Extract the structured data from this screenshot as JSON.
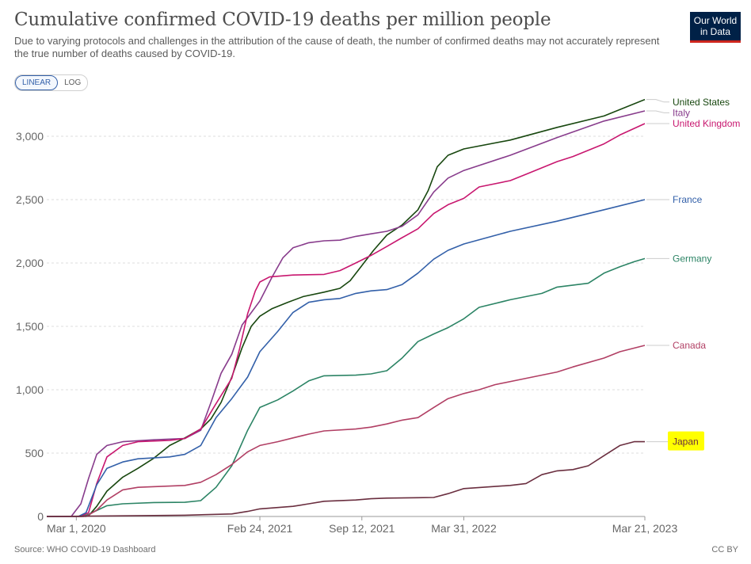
{
  "header": {
    "title": "Cumulative confirmed COVID-19 deaths per million people",
    "subtitle": "Due to varying protocols and challenges in the attribution of the cause of death, the number of confirmed deaths may not accurately represent the true number of deaths caused by COVID-19.",
    "logo_line1": "Our World",
    "logo_line2": "in Data"
  },
  "controls": {
    "linear_label": "LINEAR",
    "log_label": "LOG",
    "selected": "LINEAR"
  },
  "footer": {
    "source": "Source: WHO COVID-19 Dashboard",
    "license": "CC BY"
  },
  "colors": {
    "grid": "#dddddd",
    "axis_text": "#666666",
    "highlight": "#ffff00"
  },
  "chart_data": {
    "type": "line",
    "title": "Cumulative confirmed COVID-19 deaths per million people",
    "xlabel": "",
    "ylabel": "",
    "ylim": [
      0,
      3300
    ],
    "y_ticks": [
      0,
      500,
      1000,
      1500,
      2000,
      2500,
      3000
    ],
    "y_tick_labels": [
      "0",
      "500",
      "1,000",
      "1,500",
      "2,000",
      "2,500",
      "3,000"
    ],
    "x_tick_labels": [
      "Mar 1, 2020",
      "Feb 24, 2021",
      "Sep 12, 2021",
      "Mar 31, 2022",
      "Mar 21, 2023"
    ],
    "x_tick_dates": [
      "2020-03-01",
      "2021-02-24",
      "2021-09-12",
      "2022-03-31",
      "2023-03-21"
    ],
    "xlim": [
      "2020-01-03",
      "2023-03-21"
    ],
    "legend": "inline-right",
    "grid": true,
    "series": [
      {
        "name": "United States",
        "color": "#18470f",
        "points": [
          [
            "2020-01-03",
            0
          ],
          [
            "2020-03-10",
            0
          ],
          [
            "2020-03-25",
            5
          ],
          [
            "2020-04-10",
            80
          ],
          [
            "2020-04-30",
            200
          ],
          [
            "2020-05-31",
            310
          ],
          [
            "2020-06-30",
            380
          ],
          [
            "2020-07-31",
            460
          ],
          [
            "2020-08-31",
            560
          ],
          [
            "2020-09-30",
            620
          ],
          [
            "2020-10-31",
            690
          ],
          [
            "2020-11-20",
            770
          ],
          [
            "2020-12-10",
            900
          ],
          [
            "2020-12-31",
            1100
          ],
          [
            "2021-01-20",
            1330
          ],
          [
            "2021-02-07",
            1500
          ],
          [
            "2021-02-24",
            1580
          ],
          [
            "2021-03-20",
            1640
          ],
          [
            "2021-04-20",
            1690
          ],
          [
            "2021-05-20",
            1735
          ],
          [
            "2021-06-30",
            1770
          ],
          [
            "2021-07-31",
            1800
          ],
          [
            "2021-08-20",
            1860
          ],
          [
            "2021-09-12",
            1980
          ],
          [
            "2021-10-05",
            2100
          ],
          [
            "2021-10-31",
            2220
          ],
          [
            "2021-11-30",
            2300
          ],
          [
            "2021-12-31",
            2420
          ],
          [
            "2022-01-20",
            2570
          ],
          [
            "2022-02-07",
            2760
          ],
          [
            "2022-02-28",
            2850
          ],
          [
            "2022-03-31",
            2900
          ],
          [
            "2022-06-30",
            2970
          ],
          [
            "2022-09-30",
            3070
          ],
          [
            "2022-12-31",
            3160
          ],
          [
            "2023-03-21",
            3290
          ]
        ]
      },
      {
        "name": "Italy",
        "color": "#883c8c",
        "points": [
          [
            "2020-01-03",
            0
          ],
          [
            "2020-02-20",
            0
          ],
          [
            "2020-03-10",
            100
          ],
          [
            "2020-03-25",
            300
          ],
          [
            "2020-04-10",
            490
          ],
          [
            "2020-04-30",
            560
          ],
          [
            "2020-05-31",
            590
          ],
          [
            "2020-07-31",
            605
          ],
          [
            "2020-09-30",
            615
          ],
          [
            "2020-10-31",
            680
          ],
          [
            "2020-11-20",
            900
          ],
          [
            "2020-12-10",
            1130
          ],
          [
            "2020-12-31",
            1280
          ],
          [
            "2021-01-20",
            1510
          ],
          [
            "2021-02-24",
            1700
          ],
          [
            "2021-03-20",
            1890
          ],
          [
            "2021-04-10",
            2040
          ],
          [
            "2021-04-30",
            2120
          ],
          [
            "2021-05-31",
            2160
          ],
          [
            "2021-06-30",
            2175
          ],
          [
            "2021-07-31",
            2180
          ],
          [
            "2021-08-31",
            2210
          ],
          [
            "2021-09-30",
            2230
          ],
          [
            "2021-10-31",
            2250
          ],
          [
            "2021-11-30",
            2290
          ],
          [
            "2021-12-31",
            2380
          ],
          [
            "2022-01-31",
            2560
          ],
          [
            "2022-02-28",
            2670
          ],
          [
            "2022-03-31",
            2730
          ],
          [
            "2022-06-30",
            2850
          ],
          [
            "2022-09-30",
            2990
          ],
          [
            "2022-12-31",
            3120
          ],
          [
            "2023-03-21",
            3200
          ]
        ]
      },
      {
        "name": "United Kingdom",
        "color": "#c8176f",
        "points": [
          [
            "2020-01-03",
            0
          ],
          [
            "2020-03-10",
            0
          ],
          [
            "2020-03-25",
            30
          ],
          [
            "2020-04-10",
            260
          ],
          [
            "2020-04-30",
            470
          ],
          [
            "2020-05-31",
            560
          ],
          [
            "2020-06-30",
            590
          ],
          [
            "2020-08-31",
            600
          ],
          [
            "2020-09-30",
            615
          ],
          [
            "2020-10-31",
            690
          ],
          [
            "2020-11-30",
            890
          ],
          [
            "2020-12-31",
            1090
          ],
          [
            "2021-01-15",
            1320
          ],
          [
            "2021-01-31",
            1600
          ],
          [
            "2021-02-15",
            1780
          ],
          [
            "2021-02-24",
            1850
          ],
          [
            "2021-03-15",
            1890
          ],
          [
            "2021-04-30",
            1905
          ],
          [
            "2021-06-30",
            1910
          ],
          [
            "2021-07-31",
            1940
          ],
          [
            "2021-08-31",
            2000
          ],
          [
            "2021-09-30",
            2060
          ],
          [
            "2021-10-31",
            2130
          ],
          [
            "2021-11-30",
            2200
          ],
          [
            "2021-12-31",
            2270
          ],
          [
            "2022-01-31",
            2390
          ],
          [
            "2022-02-28",
            2460
          ],
          [
            "2022-03-31",
            2510
          ],
          [
            "2022-04-30",
            2600
          ],
          [
            "2022-06-30",
            2650
          ],
          [
            "2022-07-31",
            2700
          ],
          [
            "2022-09-30",
            2800
          ],
          [
            "2022-10-31",
            2840
          ],
          [
            "2022-12-31",
            2940
          ],
          [
            "2023-01-31",
            3010
          ],
          [
            "2023-03-21",
            3100
          ]
        ]
      },
      {
        "name": "France",
        "color": "#3360a9",
        "points": [
          [
            "2020-01-03",
            0
          ],
          [
            "2020-03-05",
            0
          ],
          [
            "2020-03-20",
            30
          ],
          [
            "2020-04-10",
            250
          ],
          [
            "2020-04-30",
            380
          ],
          [
            "2020-05-31",
            430
          ],
          [
            "2020-06-30",
            455
          ],
          [
            "2020-08-31",
            470
          ],
          [
            "2020-09-30",
            490
          ],
          [
            "2020-10-31",
            560
          ],
          [
            "2020-11-30",
            780
          ],
          [
            "2020-12-31",
            930
          ],
          [
            "2021-01-31",
            1100
          ],
          [
            "2021-02-24",
            1300
          ],
          [
            "2021-03-31",
            1460
          ],
          [
            "2021-04-30",
            1610
          ],
          [
            "2021-05-31",
            1690
          ],
          [
            "2021-06-30",
            1710
          ],
          [
            "2021-07-31",
            1720
          ],
          [
            "2021-08-31",
            1760
          ],
          [
            "2021-09-30",
            1780
          ],
          [
            "2021-10-31",
            1790
          ],
          [
            "2021-11-30",
            1830
          ],
          [
            "2021-12-31",
            1920
          ],
          [
            "2022-01-31",
            2030
          ],
          [
            "2022-02-28",
            2100
          ],
          [
            "2022-03-31",
            2150
          ],
          [
            "2022-06-30",
            2250
          ],
          [
            "2022-09-30",
            2330
          ],
          [
            "2022-12-31",
            2420
          ],
          [
            "2023-03-21",
            2500
          ]
        ]
      },
      {
        "name": "Germany",
        "color": "#2c8465",
        "points": [
          [
            "2020-01-03",
            0
          ],
          [
            "2020-03-15",
            0
          ],
          [
            "2020-04-01",
            30
          ],
          [
            "2020-04-30",
            85
          ],
          [
            "2020-05-31",
            100
          ],
          [
            "2020-07-31",
            110
          ],
          [
            "2020-09-30",
            112
          ],
          [
            "2020-10-31",
            125
          ],
          [
            "2020-11-30",
            230
          ],
          [
            "2020-12-31",
            400
          ],
          [
            "2021-01-31",
            680
          ],
          [
            "2021-02-24",
            860
          ],
          [
            "2021-03-31",
            920
          ],
          [
            "2021-04-30",
            990
          ],
          [
            "2021-05-31",
            1070
          ],
          [
            "2021-06-30",
            1110
          ],
          [
            "2021-08-31",
            1115
          ],
          [
            "2021-09-30",
            1125
          ],
          [
            "2021-10-31",
            1150
          ],
          [
            "2021-11-30",
            1250
          ],
          [
            "2021-12-31",
            1380
          ],
          [
            "2022-01-31",
            1440
          ],
          [
            "2022-02-28",
            1490
          ],
          [
            "2022-03-31",
            1560
          ],
          [
            "2022-04-30",
            1650
          ],
          [
            "2022-06-30",
            1710
          ],
          [
            "2022-08-31",
            1760
          ],
          [
            "2022-09-30",
            1810
          ],
          [
            "2022-11-30",
            1840
          ],
          [
            "2022-12-31",
            1920
          ],
          [
            "2023-01-31",
            1970
          ],
          [
            "2023-02-28",
            2010
          ],
          [
            "2023-03-21",
            2035
          ]
        ]
      },
      {
        "name": "Canada",
        "color": "#b13f64",
        "points": [
          [
            "2020-01-03",
            0
          ],
          [
            "2020-03-20",
            0
          ],
          [
            "2020-04-10",
            50
          ],
          [
            "2020-04-30",
            130
          ],
          [
            "2020-05-31",
            210
          ],
          [
            "2020-06-30",
            230
          ],
          [
            "2020-09-30",
            245
          ],
          [
            "2020-10-31",
            270
          ],
          [
            "2020-11-30",
            330
          ],
          [
            "2020-12-31",
            410
          ],
          [
            "2021-01-31",
            510
          ],
          [
            "2021-02-24",
            560
          ],
          [
            "2021-03-31",
            590
          ],
          [
            "2021-04-30",
            620
          ],
          [
            "2021-05-31",
            650
          ],
          [
            "2021-06-30",
            675
          ],
          [
            "2021-08-31",
            690
          ],
          [
            "2021-09-30",
            705
          ],
          [
            "2021-10-31",
            730
          ],
          [
            "2021-11-30",
            760
          ],
          [
            "2021-12-31",
            780
          ],
          [
            "2022-01-31",
            860
          ],
          [
            "2022-02-28",
            930
          ],
          [
            "2022-03-31",
            970
          ],
          [
            "2022-04-30",
            1000
          ],
          [
            "2022-05-31",
            1040
          ],
          [
            "2022-07-31",
            1090
          ],
          [
            "2022-09-30",
            1140
          ],
          [
            "2022-10-31",
            1180
          ],
          [
            "2022-12-31",
            1250
          ],
          [
            "2023-01-31",
            1300
          ],
          [
            "2023-03-21",
            1350
          ]
        ]
      },
      {
        "name": "Japan",
        "color": "#6a2e3f",
        "points": [
          [
            "2020-01-03",
            0
          ],
          [
            "2020-05-31",
            5
          ],
          [
            "2020-09-30",
            10
          ],
          [
            "2020-12-31",
            20
          ],
          [
            "2021-01-31",
            40
          ],
          [
            "2021-02-24",
            60
          ],
          [
            "2021-04-30",
            80
          ],
          [
            "2021-05-31",
            100
          ],
          [
            "2021-06-30",
            120
          ],
          [
            "2021-08-31",
            130
          ],
          [
            "2021-09-30",
            140
          ],
          [
            "2021-10-31",
            145
          ],
          [
            "2021-12-31",
            148
          ],
          [
            "2022-01-31",
            150
          ],
          [
            "2022-02-28",
            180
          ],
          [
            "2022-03-31",
            220
          ],
          [
            "2022-06-30",
            245
          ],
          [
            "2022-07-31",
            260
          ],
          [
            "2022-08-31",
            330
          ],
          [
            "2022-09-30",
            360
          ],
          [
            "2022-10-31",
            370
          ],
          [
            "2022-11-30",
            400
          ],
          [
            "2022-12-31",
            480
          ],
          [
            "2023-01-31",
            560
          ],
          [
            "2023-02-28",
            590
          ],
          [
            "2023-03-21",
            590
          ]
        ]
      }
    ],
    "labels": [
      {
        "series": "United States",
        "text": "United States",
        "color": "#18470f",
        "y": 3270
      },
      {
        "series": "Italy",
        "text": "Italy",
        "color": "#883c8c",
        "y": 3185
      },
      {
        "series": "United Kingdom",
        "text": "United Kingdom",
        "color": "#c8176f",
        "y": 3100
      },
      {
        "series": "France",
        "text": "France",
        "color": "#3360a9",
        "y": 2500
      },
      {
        "series": "Germany",
        "text": "Germany",
        "color": "#2c8465",
        "y": 2035
      },
      {
        "series": "Canada",
        "text": "Canada",
        "color": "#b13f64",
        "y": 1350
      },
      {
        "series": "Japan",
        "text": "Japan",
        "color": "#6a2e3f",
        "y": 590,
        "highlighted": true
      }
    ]
  }
}
